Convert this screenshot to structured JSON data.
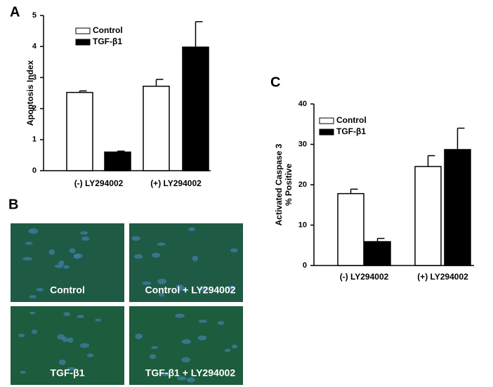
{
  "panel_labels": [
    "A",
    "B",
    "C"
  ],
  "images": [
    {
      "caption": "Control"
    },
    {
      "caption": "Control + LY294002"
    },
    {
      "caption": "TGF-β1"
    },
    {
      "caption": "TGF-β1 + LY294002"
    }
  ],
  "chart_data": [
    {
      "type": "bar",
      "ylabel": [
        "Apoptosis Index"
      ],
      "categories": [
        "(-) LY294002",
        "(+) LY294002"
      ],
      "series": [
        {
          "name": "Control",
          "color": "#ffffff",
          "values": [
            2.52,
            2.72
          ],
          "errors": [
            0.05,
            0.22
          ]
        },
        {
          "name": "TGF-β1",
          "color": "#000000",
          "values": [
            0.6,
            3.98
          ],
          "errors": [
            0.03,
            0.82
          ]
        }
      ],
      "ylim": [
        0,
        5
      ],
      "yticks": [
        0,
        1,
        2,
        3,
        4,
        5
      ],
      "grid": false
    },
    {
      "type": "bar",
      "ylabel": [
        "Activated Caspase 3",
        "% Positive"
      ],
      "categories": [
        "(-) LY294002",
        "(+) LY294002"
      ],
      "series": [
        {
          "name": "Control",
          "color": "#ffffff",
          "values": [
            17.8,
            24.5
          ],
          "errors": [
            1.1,
            2.7
          ]
        },
        {
          "name": "TGF-β1",
          "color": "#000000",
          "values": [
            5.9,
            28.7
          ],
          "errors": [
            0.8,
            5.3
          ]
        }
      ],
      "ylim": [
        0,
        40
      ],
      "yticks": [
        0,
        10,
        20,
        30,
        40
      ],
      "grid": false
    }
  ]
}
